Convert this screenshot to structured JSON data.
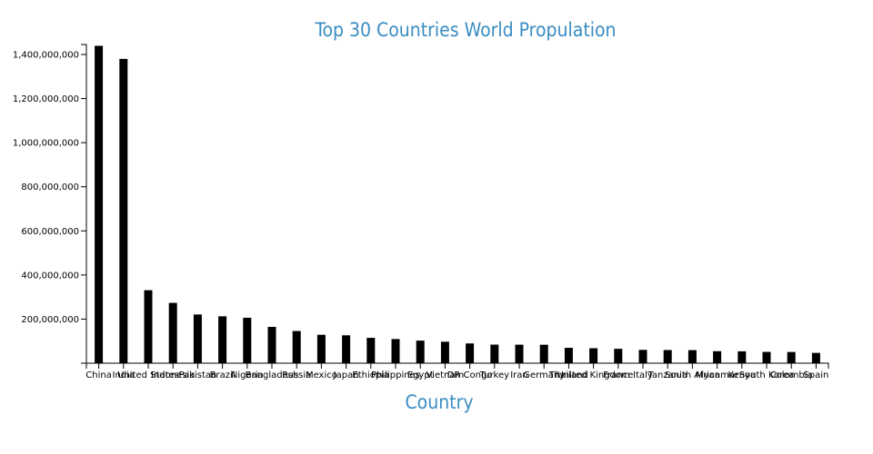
{
  "chart_data": {
    "type": "bar",
    "title": "Top 30 Countries World Propulation",
    "xlabel": "Country",
    "ylabel": "",
    "ylim": [
      0,
      1400000000
    ],
    "yticks": [
      200000000,
      400000000,
      600000000,
      800000000,
      1000000000,
      1200000000,
      1400000000
    ],
    "ytick_labels": [
      "200,000,000",
      "400,000,000",
      "600,000,000",
      "800,000,000",
      "1,000,000,000",
      "1,200,000,000",
      "1,400,000,000"
    ],
    "grid": false,
    "categories": [
      "China",
      "India",
      "United States",
      "Indonesia",
      "Pakistan",
      "Brazil",
      "Nigeria",
      "Bangladesh",
      "Russia",
      "Mexico",
      "Japan",
      "Ethiopia",
      "Philippines",
      "Egypt",
      "Vietnam",
      "DR Congo",
      "Turkey",
      "Iran",
      "Germany",
      "Thailand",
      "United Kingdom",
      "France",
      "Italy",
      "Tanzania",
      "South Africa",
      "Myanmar",
      "Kenya",
      "South Korea",
      "Colombia",
      "Spain"
    ],
    "values": [
      1439323776,
      1380004385,
      331002651,
      273523615,
      220892340,
      212559417,
      206139589,
      164689383,
      145934462,
      128932753,
      126476461,
      114963588,
      109581078,
      102334404,
      97338579,
      89561403,
      84339067,
      83992949,
      83783942,
      69799978,
      67886011,
      65273511,
      60461826,
      59734218,
      59308690,
      54409800,
      53771296,
      51269185,
      50882891,
      46754778
    ],
    "colors": {
      "bar": "#000000",
      "title": "#3a8cc2",
      "axis": "#000000"
    }
  }
}
